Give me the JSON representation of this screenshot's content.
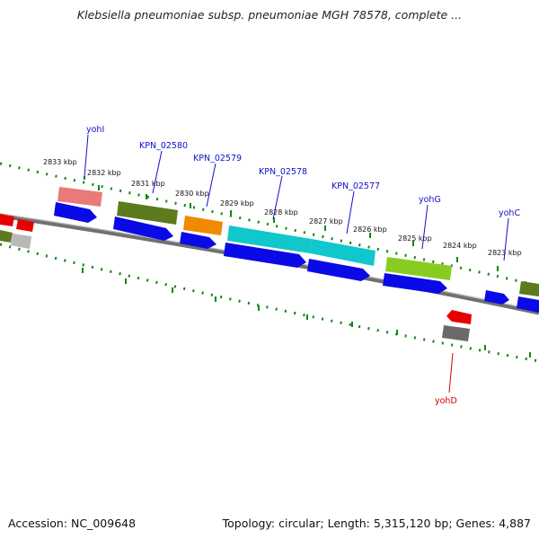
{
  "header": {
    "title": "Klebsiella pneumoniae subsp. pneumoniae MGH 78578, complete ..."
  },
  "footer": {
    "accession": "Accession: NC_009648",
    "summary": "Topology: circular; Length: 5,315,120 bp; Genes: 4,887"
  },
  "colors": {
    "forward_cds": "#0a0ae6",
    "reverse_cds": "#e60000",
    "label_forward": "#1010cc",
    "label_reverse": "#cc0000",
    "tick": "#118811",
    "backbone": "#888888",
    "olive": "#5c7a1e",
    "cyan": "#10c8cc",
    "orange": "#f08a00",
    "salmon": "#e87a7a",
    "lime": "#88cc22",
    "gray_gene": "#6a6a6a"
  },
  "ticks": [
    {
      "label": "2833 kbp"
    },
    {
      "label": "2832 kbp"
    },
    {
      "label": "2831 kbp"
    },
    {
      "label": "2830 kbp"
    },
    {
      "label": "2829 kbp"
    },
    {
      "label": "2828 kbp"
    },
    {
      "label": "2827 kbp"
    },
    {
      "label": "2826 kbp"
    },
    {
      "label": "2825 kbp"
    },
    {
      "label": "2824 kbp"
    },
    {
      "label": "2823 kbp"
    }
  ],
  "genes": [
    {
      "name": "yohI",
      "strand": "+"
    },
    {
      "name": "KPN_02580",
      "strand": "+"
    },
    {
      "name": "KPN_02579",
      "strand": "+"
    },
    {
      "name": "KPN_02578",
      "strand": "+"
    },
    {
      "name": "KPN_02577",
      "strand": "+"
    },
    {
      "name": "yohG",
      "strand": "+"
    },
    {
      "name": "yohC",
      "strand": "+"
    },
    {
      "name": "yohD",
      "strand": "-"
    }
  ]
}
